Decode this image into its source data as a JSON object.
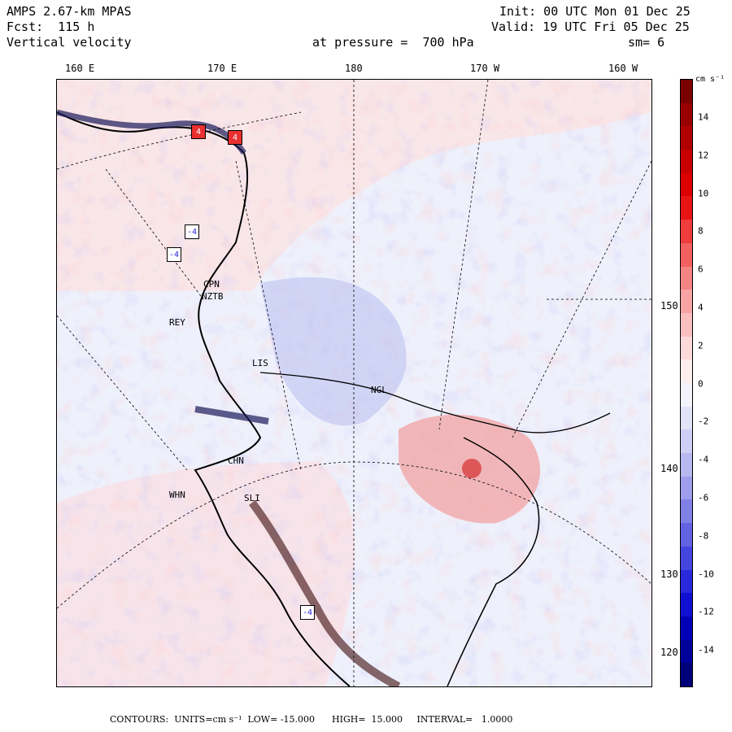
{
  "header": {
    "model": "AMPS 2.67-km MPAS",
    "forecast": "Fcst:  115 h",
    "field": "Vertical velocity",
    "init": "Init: 00 UTC Mon 01 Dec 25",
    "valid": "Valid: 19 UTC Fri 05 Dec 25",
    "pressure": "at pressure =  700 hPa",
    "smoothing": "sm= 6"
  },
  "longitude_labels": [
    "160 E",
    "170 E",
    "180",
    "170 W",
    "160 W"
  ],
  "latitude_labels": [
    "150 W",
    "140 W",
    "130 W",
    "120 W"
  ],
  "colorbar": {
    "units": "cm s⁻¹",
    "ticks": [
      "14",
      "12",
      "10",
      "8",
      "6",
      "4",
      "2",
      "0",
      "-2",
      "-4",
      "-6",
      "-8",
      "-10",
      "-12",
      "-14"
    ],
    "colors": [
      "#7a0000",
      "#9a0000",
      "#b00000",
      "#c80000",
      "#dc0000",
      "#e81414",
      "#ef3c3c",
      "#f26060",
      "#f58484",
      "#f8a4a4",
      "#fac0c0",
      "#fcdada",
      "#fdeeee",
      "#f3f3fc",
      "#e2e2f8",
      "#cfcff5",
      "#b8b8f1",
      "#9e9eec",
      "#8080e6",
      "#6262e2",
      "#4545df",
      "#2828dc",
      "#1010d2",
      "#0000b8",
      "#00009a",
      "#00007a"
    ]
  },
  "stations": [
    "CPN",
    "NZTB",
    "REY",
    "LIS",
    "NGL",
    "CHN",
    "WHN",
    "SLI"
  ],
  "extrema_markers": [
    "4",
    "4",
    "-4",
    "-4",
    "-4"
  ],
  "footer": "CONTOURS:  UNITS=cm s⁻¹  LOW= -15.000      HIGH=  15.000     INTERVAL=   1.0000"
}
